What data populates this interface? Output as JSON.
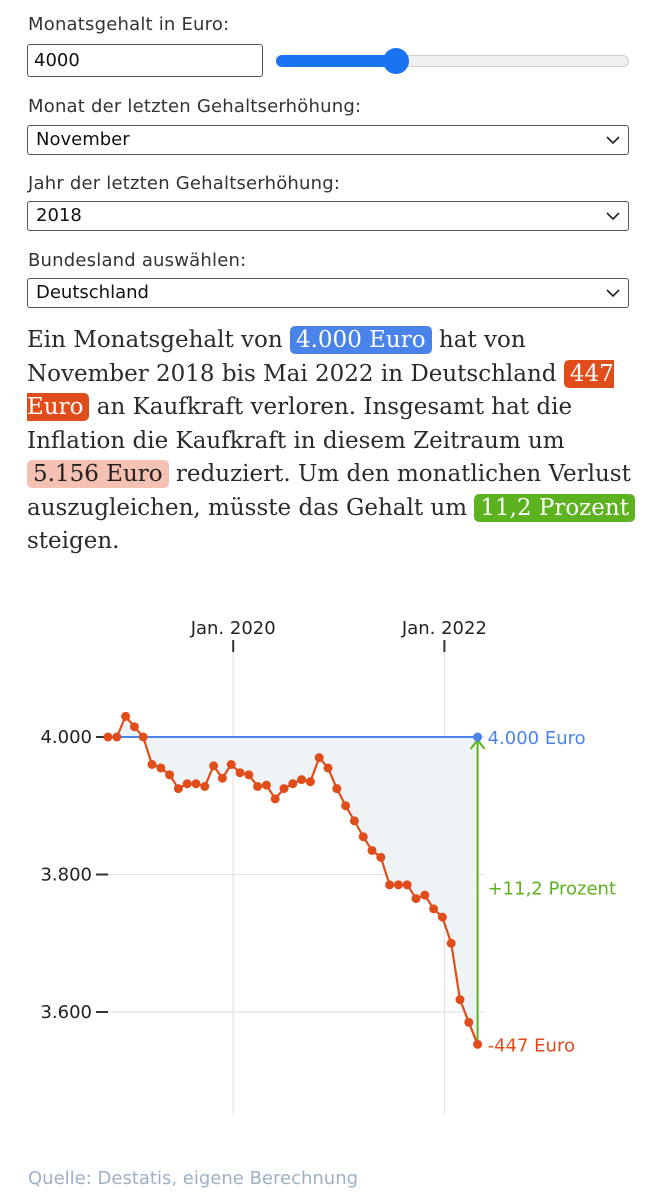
{
  "controls": {
    "salary_label": "Monatsgehalt in Euro:",
    "salary_value": "4000",
    "salary_slider_level": 0.34,
    "month_label": "Monat der letzten Gehaltserhöhung:",
    "month_value": "November",
    "year_label": "Jahr der letzten Gehaltserhöhung:",
    "year_value": "2018",
    "state_label": "Bundesland auswählen:",
    "state_value": "Deutschland"
  },
  "summary": {
    "t1": "Ein Monatsgehalt von ",
    "salary": "4.000 Euro",
    "t2": " hat von November 2018 bis Mai 2022 in Deutschland ",
    "monthly_loss": "447 Euro",
    "t3": " an Kaufkraft verloren. Insgesamt hat die Inflation die Kaufkraft in diesem Zeitraum um ",
    "total_loss": "5.156 Euro",
    "t4": " reduziert. Um den monatlichen Verlust auszugleichen, müsste das Gehalt um ",
    "percent": "11,2 Prozent",
    "t5": " steigen."
  },
  "chart_data": {
    "type": "line",
    "x_start": "2018-11",
    "x_end": "2022-05",
    "x_tick_labels": [
      "Jan. 2020",
      "Jan. 2022"
    ],
    "y_ticks": [
      4000,
      3800,
      3600
    ],
    "y_tick_labels": [
      "4.000",
      "3.800",
      "3.600"
    ],
    "ylim": [
      3510,
      4080
    ],
    "grid": true,
    "colors": {
      "purchasing_power": "#e04d1b",
      "baseline": "#4a84ea",
      "increase": "#5cb21f",
      "area": "#eef3f6"
    },
    "series": [
      {
        "values": [
          4000,
          4000,
          4030,
          4015,
          4000,
          3960,
          3955,
          3945,
          3925,
          3932,
          3932,
          3928,
          3958,
          3940,
          3960,
          3948,
          3945,
          3928,
          3930,
          3910,
          3925,
          3932,
          3938,
          3935,
          3970,
          3955,
          3925,
          3900,
          3878,
          3855,
          3835,
          3825,
          3785,
          3785,
          3785,
          3765,
          3770,
          3750,
          3738,
          3700,
          3618,
          3585,
          3553
        ]
      }
    ],
    "annotations": {
      "baseline_label": "4.000 Euro",
      "increase_label": "+11,2 Prozent",
      "loss_label": "-447 Euro"
    }
  },
  "source": "Quelle: Destatis, eigene Berechnung"
}
